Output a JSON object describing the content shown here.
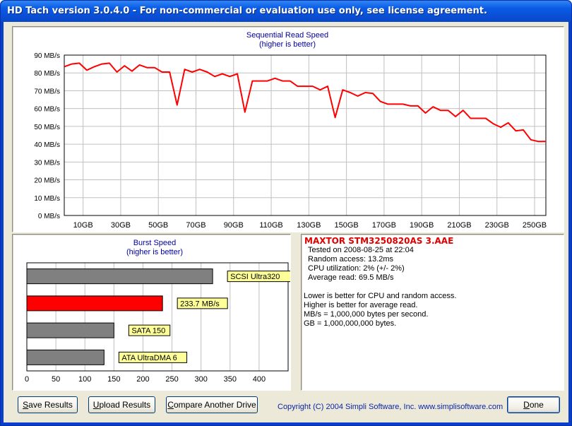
{
  "window": {
    "title": "HD Tach version 3.0.4.0  - For non-commercial or evaluation use only, see license agreement."
  },
  "colors": {
    "line": "#ff0000",
    "bar_gray": "#808080",
    "bar_highlight": "#ff0000",
    "label_bg": "#ffff99",
    "title_blue": "#0000a0",
    "drive_red": "#e00000"
  },
  "chart_data": [
    {
      "type": "line",
      "title": "Sequential Read Speed",
      "subtitle": "(higher is better)",
      "xlabel": "",
      "ylabel": "",
      "ylim": [
        0,
        90
      ],
      "xlim": [
        0,
        256
      ],
      "y_tick_values": [
        0,
        10,
        20,
        30,
        40,
        50,
        60,
        70,
        80,
        90
      ],
      "y_tick_labels": [
        "0 MB/s",
        "10 MB/s",
        "20 MB/s",
        "30 MB/s",
        "40 MB/s",
        "50 MB/s",
        "60 MB/s",
        "70 MB/s",
        "80 MB/s",
        "90 MB/s"
      ],
      "x_tick_values": [
        10,
        30,
        50,
        70,
        90,
        110,
        130,
        150,
        170,
        190,
        210,
        230,
        250
      ],
      "x_tick_labels": [
        "10GB",
        "30GB",
        "50GB",
        "70GB",
        "90GB",
        "110GB",
        "130GB",
        "150GB",
        "170GB",
        "190GB",
        "210GB",
        "230GB",
        "250GB"
      ],
      "grid": true,
      "series": [
        {
          "x": [
            0,
            4,
            8,
            12,
            16,
            20,
            24,
            28,
            32,
            36,
            40,
            44,
            48,
            52,
            56,
            60,
            64,
            68,
            72,
            76,
            80,
            84,
            88,
            92,
            96,
            100,
            104,
            108,
            112,
            116,
            120,
            124,
            128,
            132,
            136,
            140,
            144,
            148,
            152,
            156,
            160,
            164,
            168,
            172,
            176,
            180,
            184,
            188,
            192,
            196,
            200,
            204,
            208,
            212,
            216,
            220,
            224,
            228,
            232,
            236,
            240,
            244,
            248,
            252,
            256
          ],
          "values": [
            83.5,
            85,
            85.5,
            81.5,
            83.5,
            85,
            85.5,
            80.5,
            84,
            81,
            84.5,
            83,
            83,
            80.5,
            80.5,
            62,
            82,
            80.5,
            82,
            80.5,
            78,
            79.5,
            78,
            79.5,
            58,
            75.5,
            75.5,
            75.5,
            77,
            75.5,
            75.5,
            72.5,
            72.5,
            72.5,
            70.5,
            72.5,
            55,
            70.5,
            69,
            67,
            69,
            68.5,
            64,
            62.5,
            62.5,
            62.5,
            61.5,
            61.5,
            57.5,
            61,
            59,
            59,
            55.5,
            59,
            54.5,
            54.5,
            54.5,
            51.5,
            49.5,
            52,
            47.5,
            48,
            42.5,
            41.5,
            41.5
          ]
        }
      ]
    },
    {
      "type": "bar",
      "orientation": "horizontal",
      "title": "Burst Speed",
      "subtitle": "(higher is better)",
      "xlim": [
        0,
        450
      ],
      "x_tick_values": [
        0,
        50,
        100,
        150,
        200,
        250,
        300,
        350,
        400
      ],
      "x_tick_labels": [
        "0",
        "50",
        "100",
        "150",
        "200",
        "250",
        "300",
        "350",
        "400"
      ],
      "grid": true,
      "categories": [
        "SCSI Ultra320",
        "233.7 MB/s",
        "SATA 150",
        "ATA UltraDMA 6"
      ],
      "values": [
        320,
        233.7,
        150,
        133
      ],
      "highlight": [
        false,
        true,
        false,
        false
      ]
    }
  ],
  "drive_info": {
    "name": "MAXTOR STM3250820AS 3.AAE",
    "tested": "Tested on 2008-08-25 at 22:04",
    "random_access": "Random access: 13.2ms",
    "cpu": "CPU utilization: 2% (+/- 2%)",
    "avg_read": "Average read: 69.5 MB/s",
    "notes": [
      "Lower is better for CPU and random access.",
      "Higher is better for average read.",
      "MB/s = 1,000,000 bytes per second.",
      "GB = 1,000,000,000 bytes."
    ]
  },
  "buttons": {
    "save_key": "S",
    "save_rest": "ave Results",
    "upload_key": "U",
    "upload_rest": "pload Results",
    "compare_key": "C",
    "compare_rest": "ompare Another Drive",
    "done_key": "D",
    "done_rest": "one"
  },
  "copyright": "Copyright (C) 2004 Simpli Software, Inc. www.simplisoftware.com"
}
